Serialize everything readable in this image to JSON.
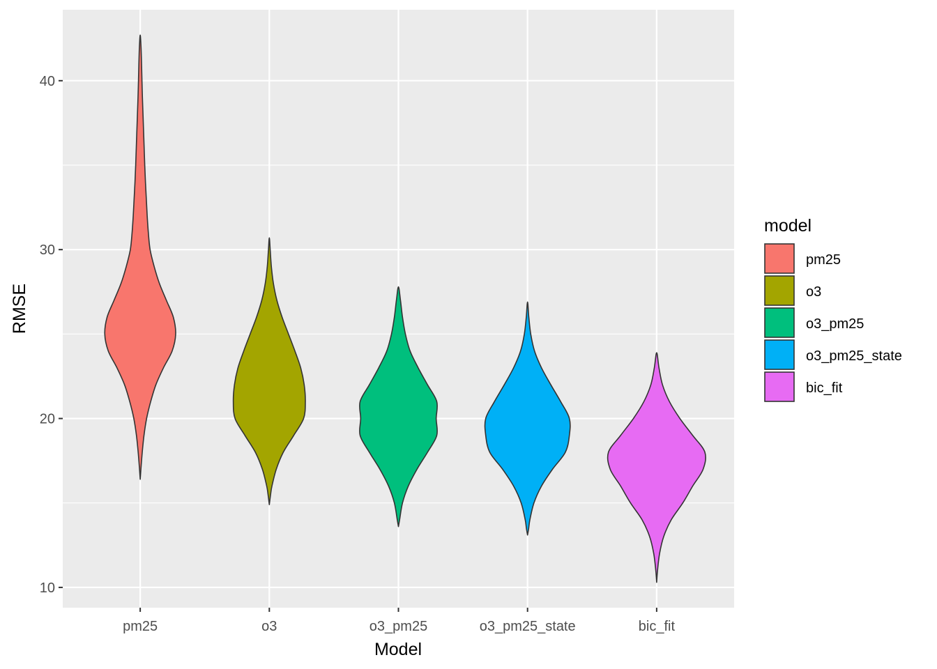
{
  "chart_data": {
    "type": "violin",
    "xlabel": "Model",
    "ylabel": "RMSE",
    "ylim": [
      8.8,
      44.2
    ],
    "yticks": [
      10,
      20,
      30,
      40
    ],
    "grid": true,
    "legend": {
      "title": "model",
      "placement": "right"
    },
    "categories": [
      "pm25",
      "o3",
      "o3_pm25",
      "o3_pm25_state",
      "bic_fit"
    ],
    "series": [
      {
        "name": "pm25",
        "color": "#F8766D",
        "profile": [
          [
            16.4,
            0.0
          ],
          [
            17,
            0.012
          ],
          [
            18,
            0.035
          ],
          [
            19,
            0.065
          ],
          [
            20,
            0.11
          ],
          [
            21,
            0.18
          ],
          [
            22,
            0.27
          ],
          [
            23,
            0.4
          ],
          [
            24,
            0.55
          ],
          [
            25,
            0.61
          ],
          [
            26,
            0.57
          ],
          [
            27,
            0.45
          ],
          [
            28,
            0.33
          ],
          [
            29,
            0.24
          ],
          [
            30,
            0.17
          ],
          [
            31,
            0.14
          ],
          [
            32,
            0.12
          ],
          [
            33,
            0.105
          ],
          [
            34,
            0.09
          ],
          [
            35,
            0.078
          ],
          [
            36,
            0.068
          ],
          [
            37,
            0.058
          ],
          [
            38,
            0.048
          ],
          [
            39,
            0.038
          ],
          [
            40,
            0.03
          ],
          [
            41,
            0.023
          ],
          [
            42,
            0.014
          ],
          [
            42.7,
            0.0
          ]
        ]
      },
      {
        "name": "o3",
        "color": "#A3A500",
        "profile": [
          [
            14.9,
            0.0
          ],
          [
            15.5,
            0.022
          ],
          [
            16,
            0.045
          ],
          [
            17,
            0.12
          ],
          [
            18,
            0.24
          ],
          [
            19,
            0.42
          ],
          [
            20,
            0.59
          ],
          [
            21,
            0.62
          ],
          [
            22,
            0.6
          ],
          [
            23,
            0.54
          ],
          [
            24,
            0.44
          ],
          [
            25,
            0.33
          ],
          [
            26,
            0.22
          ],
          [
            27,
            0.13
          ],
          [
            28,
            0.07
          ],
          [
            29,
            0.035
          ],
          [
            30,
            0.015
          ],
          [
            30.7,
            0.0
          ]
        ]
      },
      {
        "name": "o3_pm25",
        "color": "#00BF7D",
        "profile": [
          [
            13.6,
            0.0
          ],
          [
            14,
            0.02
          ],
          [
            15,
            0.07
          ],
          [
            16,
            0.17
          ],
          [
            17,
            0.32
          ],
          [
            18,
            0.5
          ],
          [
            19,
            0.66
          ],
          [
            20,
            0.65
          ],
          [
            21,
            0.66
          ],
          [
            22,
            0.5
          ],
          [
            23,
            0.34
          ],
          [
            24,
            0.2
          ],
          [
            25,
            0.12
          ],
          [
            26,
            0.07
          ],
          [
            27,
            0.035
          ],
          [
            27.8,
            0.0
          ]
        ]
      },
      {
        "name": "o3_pm25_state",
        "color": "#00B0F6",
        "profile": [
          [
            13.1,
            0.0
          ],
          [
            13.5,
            0.02
          ],
          [
            14,
            0.04
          ],
          [
            15,
            0.11
          ],
          [
            16,
            0.24
          ],
          [
            17,
            0.43
          ],
          [
            18,
            0.65
          ],
          [
            19,
            0.72
          ],
          [
            20,
            0.72
          ],
          [
            21,
            0.57
          ],
          [
            22,
            0.4
          ],
          [
            23,
            0.24
          ],
          [
            24,
            0.12
          ],
          [
            25,
            0.055
          ],
          [
            26,
            0.022
          ],
          [
            26.9,
            0.0
          ]
        ]
      },
      {
        "name": "bic_fit",
        "color": "#E76BF3",
        "profile": [
          [
            10.3,
            0.0
          ],
          [
            11,
            0.015
          ],
          [
            12,
            0.05
          ],
          [
            13,
            0.12
          ],
          [
            14,
            0.25
          ],
          [
            15,
            0.45
          ],
          [
            16,
            0.62
          ],
          [
            17,
            0.8
          ],
          [
            18,
            0.83
          ],
          [
            19,
            0.62
          ],
          [
            20,
            0.4
          ],
          [
            21,
            0.22
          ],
          [
            22,
            0.1
          ],
          [
            23,
            0.04
          ],
          [
            23.9,
            0.0
          ]
        ]
      }
    ]
  }
}
